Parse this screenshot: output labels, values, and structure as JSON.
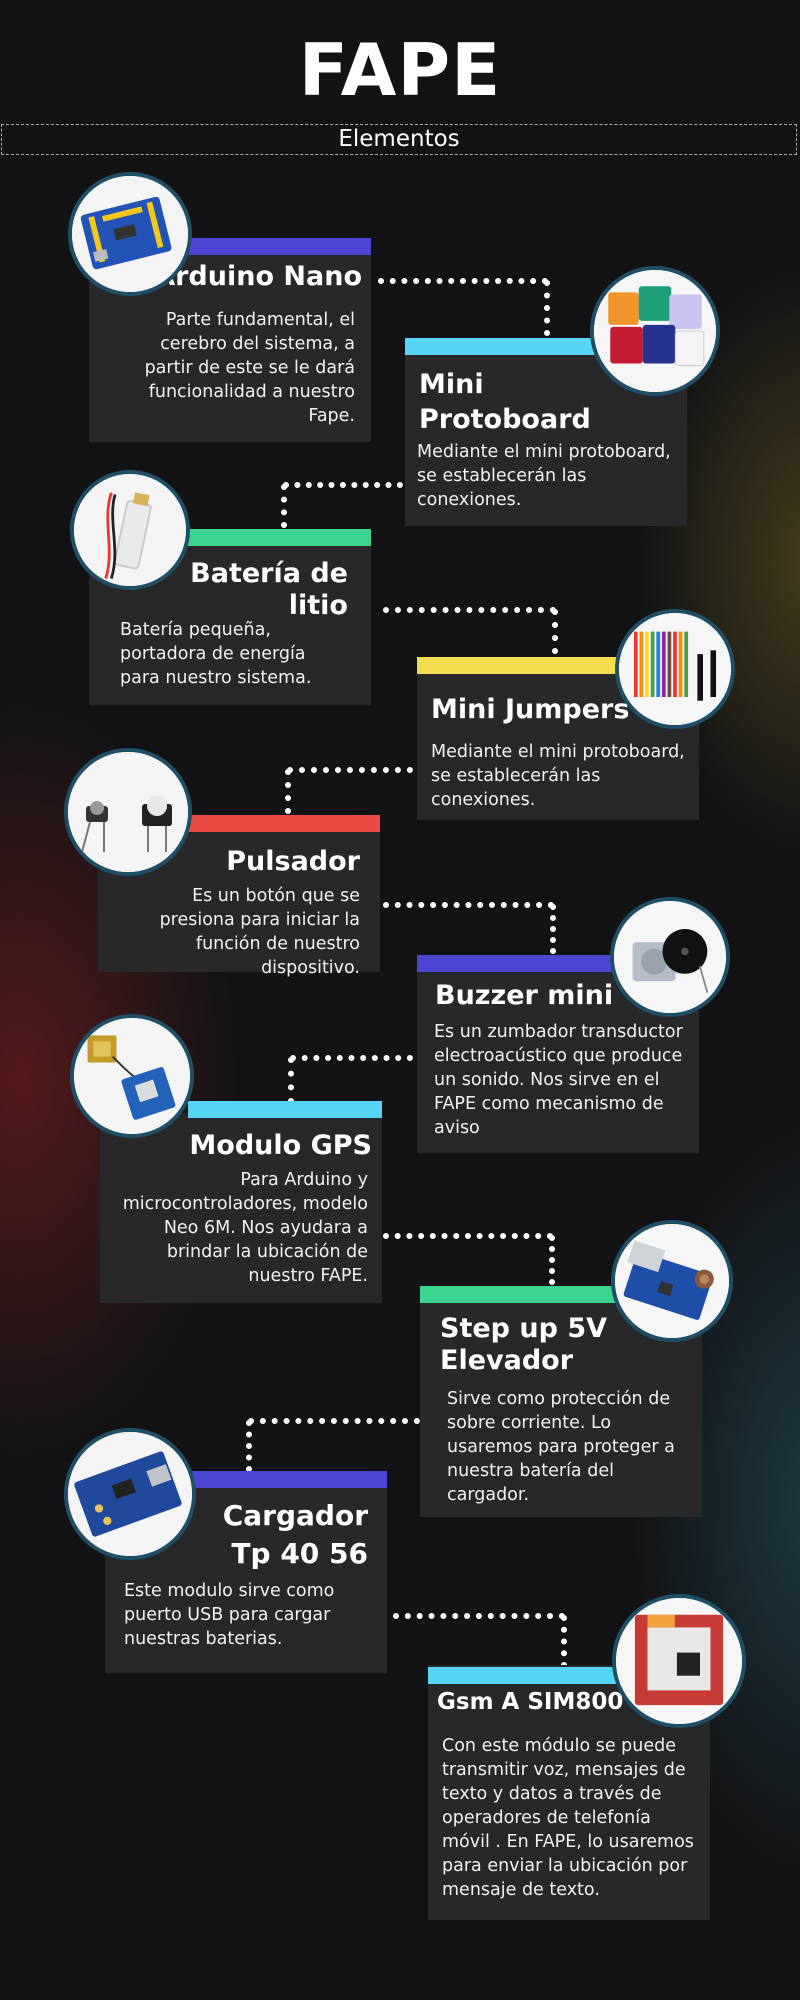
{
  "header": {
    "title": "FAPE",
    "subtitle": "Elementos"
  },
  "colors": {
    "purple": "#4a45d2",
    "cyan": "#55d4f5",
    "green": "#3ad690",
    "yellow": "#f4dd4e",
    "red": "#ec4a44",
    "card": "#28282a",
    "background": "#131315"
  },
  "items": [
    {
      "title": "Arduino Nano",
      "desc": "Parte fundamental, el cerebro del sistema, a partir de este se le dará funcionalidad a nuestro Fape.",
      "accent": "purple",
      "icon": "arduino-nano-icon"
    },
    {
      "title": "Mini Protoboard",
      "desc": "Mediante el mini protoboard, se establecerán las conexiones.",
      "accent": "cyan",
      "icon": "protoboard-icon"
    },
    {
      "title": "Batería de litio",
      "desc": "Batería pequeña, portadora de energía para nuestro sistema.",
      "accent": "green",
      "icon": "battery-icon"
    },
    {
      "title": "Mini Jumpers",
      "desc": "Mediante el mini protoboard, se establecerán las conexiones.",
      "accent": "yellow",
      "icon": "jumpers-icon"
    },
    {
      "title": "Pulsador",
      "desc": "Es un botón que se presiona para iniciar la función de nuestro dispositivo.",
      "accent": "red",
      "icon": "push-button-icon"
    },
    {
      "title": "Buzzer mini",
      "desc": "Es un zumbador transductor electroacústico que produce un sonido. Nos sirve en el FAPE como mecanismo de aviso",
      "accent": "purple",
      "icon": "buzzer-icon"
    },
    {
      "title": "Modulo GPS",
      "desc": "Para Arduino y microcontroladores, modelo Neo 6M. Nos ayudara a brindar la ubicación de nuestro FAPE.",
      "accent": "cyan",
      "icon": "gps-module-icon"
    },
    {
      "title": "Step up 5V Elevador",
      "desc": "Sirve como protección de sobre corriente. Lo usaremos para proteger a nuestra batería del cargador.",
      "accent": "green",
      "icon": "step-up-icon"
    },
    {
      "title": "Cargador Tp 40 56",
      "desc": "Este modulo sirve como puerto USB para cargar nuestras baterias.",
      "accent": "purple",
      "icon": "charger-module-icon"
    },
    {
      "title": "Gsm A SIM800",
      "desc": "Con este módulo se puede transmitir voz, mensajes de texto y datos a través de operadores de telefonía móvil . En FAPE, lo usaremos para enviar la ubicación por mensaje de texto.",
      "accent": "cyan",
      "icon": "gsm-module-icon"
    }
  ]
}
